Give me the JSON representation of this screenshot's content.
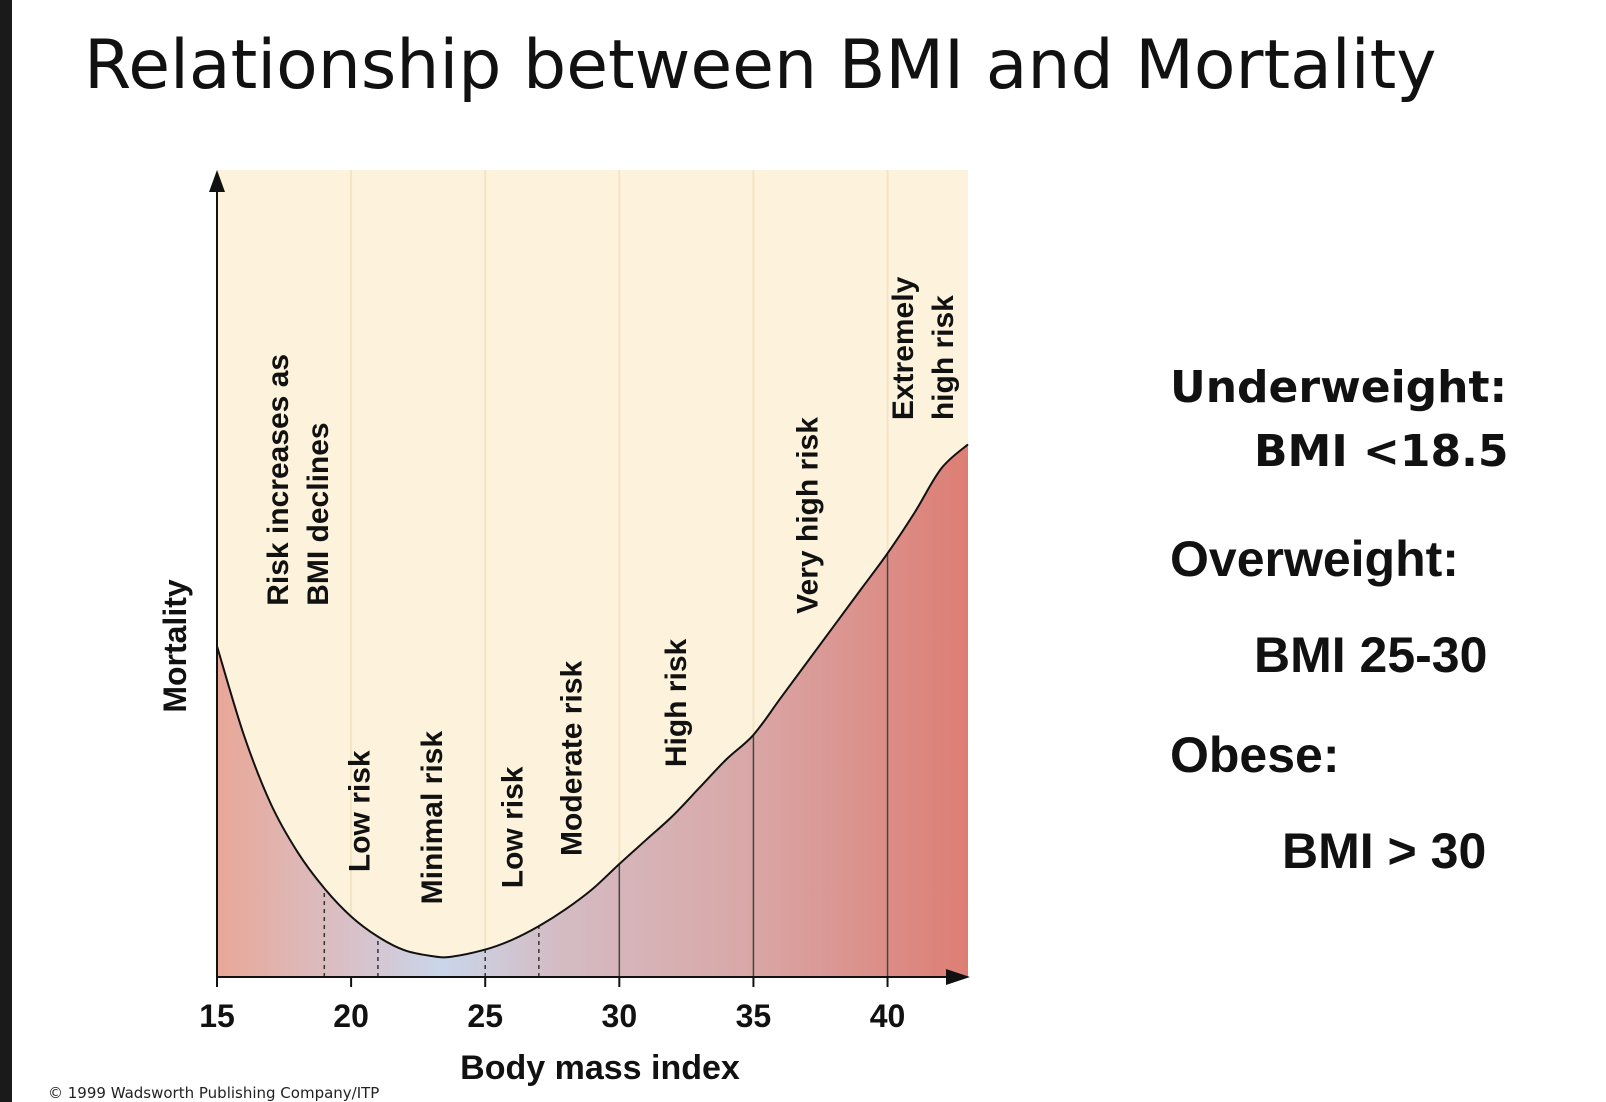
{
  "slide": {
    "title": "Relationship between BMI and Mortality",
    "copyright": "© 1999 Wadsworth Publishing Company/ITP"
  },
  "legend": {
    "underweight_label": "Underweight:",
    "underweight_value": "BMI <18.5",
    "overweight_label": "Overweight:",
    "overweight_value": "BMI 25-30",
    "obese_label": "Obese:",
    "obese_value": "BMI > 30"
  },
  "colors": {
    "background_panel": "#fdf3dd",
    "risk_red": "#e5978b",
    "strong_red": "#de7d72",
    "minimal_blue": "#c9d6ea"
  },
  "chart_data": {
    "type": "area",
    "title": "",
    "xlabel": "Body mass index",
    "ylabel": "Mortality",
    "xlim": [
      15,
      43
    ],
    "ylim": [
      0,
      1
    ],
    "x_ticks": [
      15,
      20,
      25,
      30,
      35,
      40
    ],
    "series": [
      {
        "name": "Mortality",
        "x": [
          15,
          16,
          17,
          18,
          19,
          20,
          21,
          22,
          23,
          23.7,
          25,
          26,
          27,
          28,
          29,
          30,
          31,
          32,
          33,
          34,
          35,
          36,
          37,
          38,
          39,
          40,
          41,
          42,
          43
        ],
        "y": [
          0.41,
          0.3,
          0.215,
          0.155,
          0.11,
          0.075,
          0.05,
          0.033,
          0.026,
          0.025,
          0.034,
          0.046,
          0.063,
          0.084,
          0.109,
          0.14,
          0.17,
          0.2,
          0.235,
          0.27,
          0.3,
          0.345,
          0.39,
          0.435,
          0.48,
          0.525,
          0.575,
          0.63,
          0.66
        ]
      }
    ],
    "zones": [
      {
        "label": "Risk increases as BMI declines",
        "label_lines": [
          "Risk increases as",
          "BMI declines"
        ],
        "label_x": 18.0,
        "label_y": 0.46
      },
      {
        "label": "Low risk",
        "label_x": 20.3,
        "label_y": 0.13
      },
      {
        "label": "Minimal risk",
        "label_x": 23.0,
        "label_y": 0.09
      },
      {
        "label": "Low risk",
        "label_x": 26.0,
        "label_y": 0.11
      },
      {
        "label": "Moderate risk",
        "label_x": 28.2,
        "label_y": 0.15
      },
      {
        "label": "High risk",
        "label_x": 32.1,
        "label_y": 0.26
      },
      {
        "label": "Very high risk",
        "label_x": 37.0,
        "label_y": 0.45
      },
      {
        "label": "Extremely high risk",
        "label_lines": [
          "Extremely",
          "high risk"
        ],
        "label_x": 41.3,
        "label_y": 0.69
      }
    ],
    "boundaries": [
      {
        "x": 19,
        "style": "dashed"
      },
      {
        "x": 21,
        "style": "dashed"
      },
      {
        "x": 25,
        "style": "dashed"
      },
      {
        "x": 27,
        "style": "dashed"
      },
      {
        "x": 30,
        "style": "solid"
      },
      {
        "x": 35,
        "style": "solid"
      },
      {
        "x": 40,
        "style": "solid"
      }
    ]
  }
}
